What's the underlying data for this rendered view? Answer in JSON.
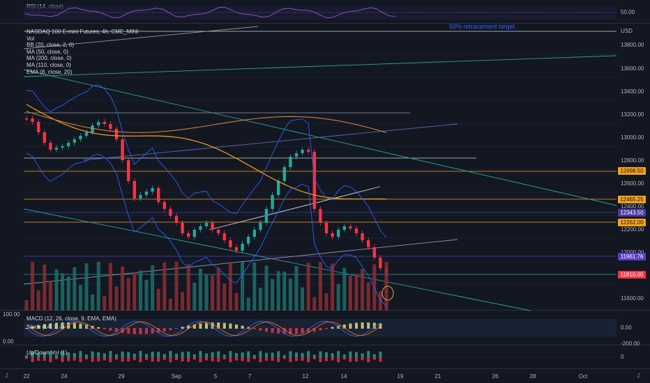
{
  "rsi": {
    "title": "RSI (14, close)",
    "level": "50.00"
  },
  "main": {
    "symbol": "NASDAQ 100 E-mini Futures, 4h, CME_MINI",
    "indicators": [
      "Vol",
      "BB (20, close, 2, 0)",
      "MA (50, close, 0)",
      "MA (200, close, 0)",
      "MA (110, close, 0)",
      "EMA (8, close, 20)"
    ],
    "currency": "USD",
    "annotation": "50% retracement target",
    "price_ticks": [
      "13800.00",
      "13600.00",
      "13400.00",
      "13200.00",
      "13000.00",
      "12800.00",
      "12600.00",
      "12400.00",
      "12200.00",
      "12000.00",
      "11600.00"
    ],
    "price_tags": [
      {
        "label": "12698.50",
        "color": "#f7a21b"
      },
      {
        "label": "12465.25",
        "color": "#f7a21b"
      },
      {
        "label": "12343.50",
        "color": "#4a3aa8"
      },
      {
        "label": "12262.00",
        "color": "#f7a21b"
      },
      {
        "label": "11961.76",
        "color": "#5b3cc4"
      },
      {
        "label": "11810.00",
        "color": "#f23645"
      }
    ]
  },
  "lower": {
    "left_top": "100.00",
    "left_bottom": "0.00",
    "macd_title": "MACD (12, 26, close, 9, EMA, EMA)",
    "stoch_title": "Stoch (14, 1, 3)",
    "macd_ticks": [
      "0.00",
      "-200.00"
    ],
    "updown_title": "Up/Down Vol (1)",
    "updown_tick": "0"
  },
  "time_axis": [
    "22",
    "24",
    "29",
    "Sep",
    "5",
    "7",
    "12",
    "14",
    "19",
    "21",
    "26",
    "28",
    "Oct"
  ],
  "timezone_icon_labels": [
    "Z",
    "Z"
  ]
}
